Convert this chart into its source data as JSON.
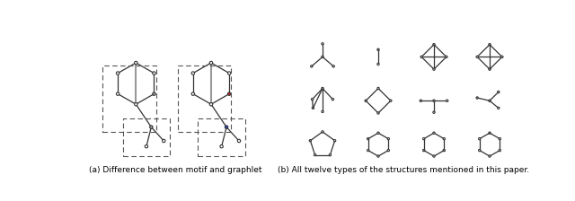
{
  "fig_width": 6.4,
  "fig_height": 2.24,
  "dpi": 100,
  "bg_color": "#ffffff",
  "WHITE": "#ffffff",
  "GRAY": "#aaaaaa",
  "RED": "#cc2222",
  "BLUE": "#2244cc",
  "EC": "#333333",
  "caption_a": "(a) Difference between motif and graphlet",
  "caption_b": "(b) All twelve types of the structures mentioned in this paper.",
  "caption_fs": 6.5
}
